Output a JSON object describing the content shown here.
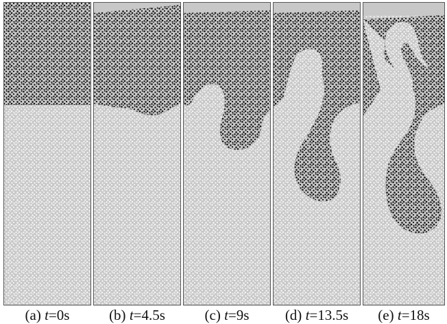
{
  "figure": {
    "panels": [
      {
        "id": "a",
        "caption_label": "(a) ",
        "caption_var": "t",
        "caption_value": "=0s"
      },
      {
        "id": "b",
        "caption_label": "(b) ",
        "caption_var": "t",
        "caption_value": "=4.5s"
      },
      {
        "id": "c",
        "caption_label": "(c) ",
        "caption_var": "t",
        "caption_value": "=9s"
      },
      {
        "id": "d",
        "caption_label": "(d) ",
        "caption_var": "t",
        "caption_value": "=13.5s"
      },
      {
        "id": "e",
        "caption_label": "(e) ",
        "caption_var": "t",
        "caption_value": "=18s"
      }
    ],
    "colors": {
      "background_fluid": "#c8c8c8",
      "heavy_particles": "#111111",
      "light_particles": "#f4f4f4",
      "panel_border": "#555555",
      "caption_text": "#111111"
    }
  }
}
